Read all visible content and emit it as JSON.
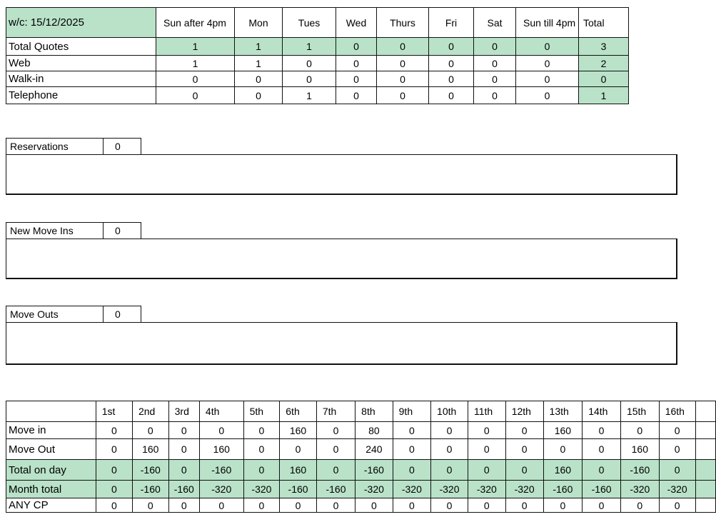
{
  "quotes": {
    "week_label": "w/c:   15/12/2025",
    "columns": [
      "Sun after 4pm",
      "Mon",
      "Tues",
      "Wed",
      "Thurs",
      "Fri",
      "Sat",
      "Sun till 4pm",
      "Total"
    ],
    "rows": [
      {
        "label": "Total Quotes",
        "values": [
          "1",
          "1",
          "1",
          "0",
          "0",
          "0",
          "0",
          "0",
          "3"
        ]
      },
      {
        "label": "Web",
        "values": [
          "1",
          "1",
          "0",
          "0",
          "0",
          "0",
          "0",
          "0",
          "2"
        ]
      },
      {
        "label": "Walk-in",
        "values": [
          "0",
          "0",
          "0",
          "0",
          "0",
          "0",
          "0",
          "0",
          "0"
        ]
      },
      {
        "label": "Telephone",
        "values": [
          "0",
          "0",
          "1",
          "0",
          "0",
          "0",
          "0",
          "0",
          "1"
        ]
      }
    ]
  },
  "sections": [
    {
      "label": "Reservations",
      "value": "0"
    },
    {
      "label": "New Move Ins",
      "value": "0"
    },
    {
      "label": "Move Outs",
      "value": "0"
    }
  ],
  "days": {
    "columns": [
      "1st",
      "2nd",
      "3rd",
      "4th",
      "5th",
      "6th",
      "7th",
      "8th",
      "9th",
      "10th",
      "11th",
      "12th",
      "13th",
      "14th",
      "15th",
      "16th"
    ],
    "rows": [
      {
        "label": "Move in",
        "values": [
          "0",
          "0",
          "0",
          "0",
          "0",
          "160",
          "0",
          "80",
          "0",
          "0",
          "0",
          "0",
          "160",
          "0",
          "0",
          "0"
        ]
      },
      {
        "label": "Move Out",
        "values": [
          "0",
          "160",
          "0",
          "160",
          "0",
          "0",
          "0",
          "240",
          "0",
          "0",
          "0",
          "0",
          "0",
          "0",
          "160",
          "0"
        ]
      },
      {
        "label": "Total on day",
        "values": [
          "0",
          "-160",
          "0",
          "-160",
          "0",
          "160",
          "0",
          "-160",
          "0",
          "0",
          "0",
          "0",
          "160",
          "0",
          "-160",
          "0"
        ]
      },
      {
        "label": "Month total",
        "values": [
          "0",
          "-160",
          "-160",
          "-320",
          "-320",
          "-160",
          "-160",
          "-320",
          "-320",
          "-320",
          "-320",
          "-320",
          "-160",
          "-160",
          "-320",
          "-320"
        ]
      },
      {
        "label": "ANY CP",
        "values": [
          "0",
          "0",
          "0",
          "0",
          "0",
          "0",
          "0",
          "0",
          "0",
          "0",
          "0",
          "0",
          "0",
          "0",
          "0",
          "0"
        ]
      }
    ]
  },
  "colors": {
    "highlight": "#b9e2c9"
  }
}
